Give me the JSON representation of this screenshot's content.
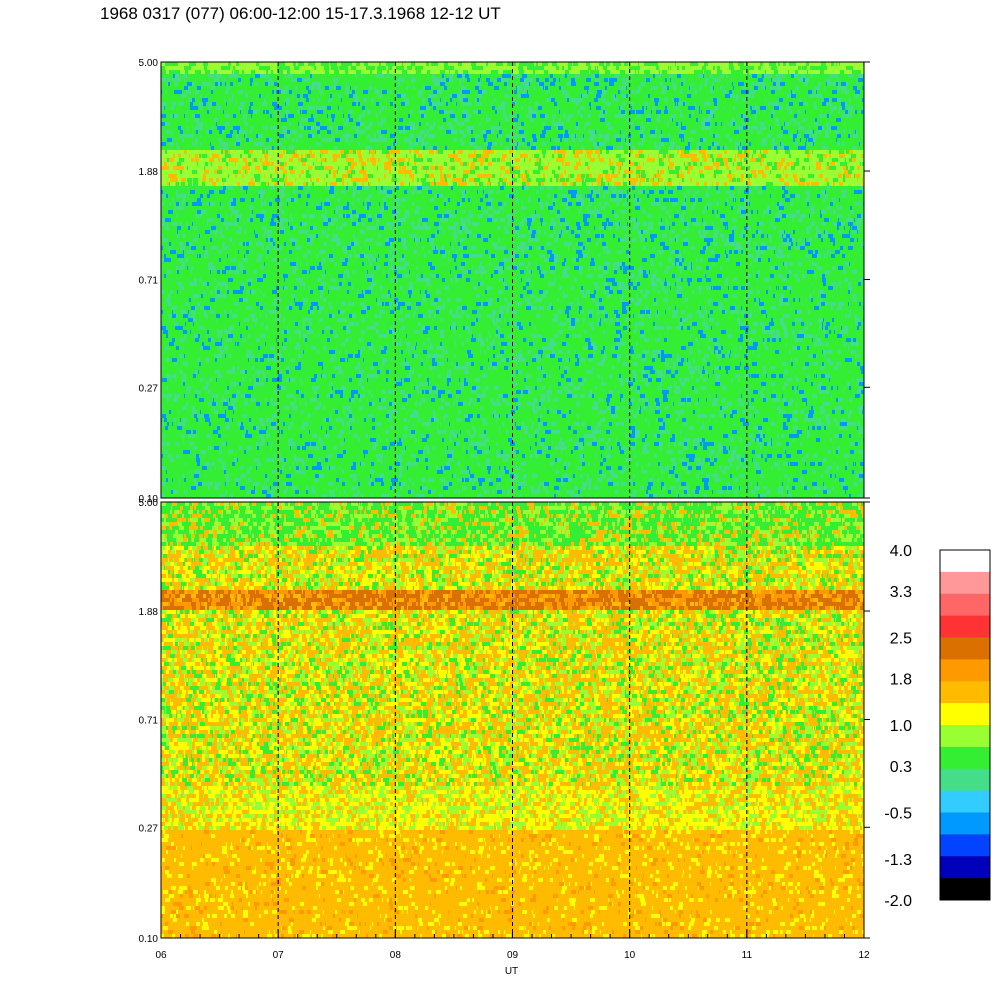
{
  "header": {
    "title": "1968 0317 (077) 06:00-12:00 15-17.3.1968  12-12 UT"
  },
  "chart_data": {
    "type": "heatmap",
    "title": "1968 0317 (077) 06:00-12:00 15-17.3.1968  12-12 UT",
    "xlabel": "UT",
    "x_ticks": [
      "06",
      "07",
      "08",
      "09",
      "10",
      "11",
      "12"
    ],
    "panels": [
      {
        "name": "",
        "y_ticks": [
          "5.00",
          "1.88",
          "0.71",
          "0.27",
          "0.10"
        ],
        "ylim": [
          0.1,
          5.0
        ],
        "y_scale": "log",
        "dominant_levels": [
          0.3,
          1.0,
          -0.5
        ],
        "band_level_at_1.88": 1.0
      },
      {
        "name": "",
        "y_ticks": [
          "5.00",
          "1.88",
          "0.71",
          "0.27",
          "0.10"
        ],
        "ylim": [
          0.1,
          5.0
        ],
        "y_scale": "log",
        "dominant_levels": [
          1.8,
          1.0,
          0.3
        ],
        "band_level_at_1.88": 2.5
      }
    ],
    "colorbar": {
      "tick_labels": [
        "4.0",
        "3.3",
        "2.5",
        "1.8",
        "1.0",
        "0.3",
        "-0.5",
        "-1.3",
        "-2.0"
      ],
      "range": [
        -2.0,
        4.0
      ],
      "colors_top_to_bottom": [
        "#ffffff",
        "#ff9999",
        "#ff6666",
        "#ff3333",
        "#d97000",
        "#ff9900",
        "#ffbb00",
        "#ffff00",
        "#99ff33",
        "#33ee33",
        "#44dd88",
        "#33ccff",
        "#0099ff",
        "#0044ff",
        "#0000bb",
        "#000000"
      ]
    },
    "grid": "dashed vertical lines at each hour"
  }
}
